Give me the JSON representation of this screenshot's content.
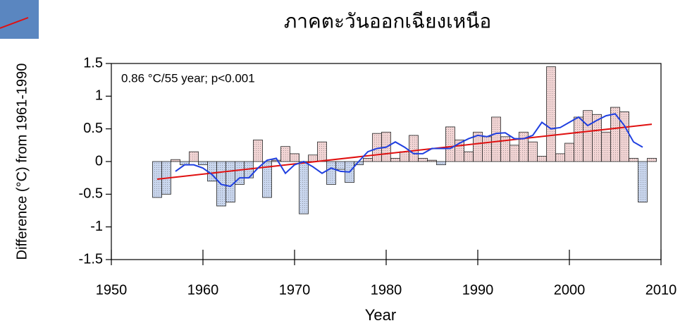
{
  "chart_data": {
    "type": "bar",
    "title": "ภาคตะวันออกเฉียงเหนือ",
    "annotation": "0.86 °C/55 year; p<0.001",
    "x_label": "Year",
    "y_label": "Difference (°C) from 1961-1990",
    "x": [
      1955,
      1956,
      1957,
      1958,
      1959,
      1960,
      1961,
      1962,
      1963,
      1964,
      1965,
      1966,
      1967,
      1968,
      1969,
      1970,
      1971,
      1972,
      1973,
      1974,
      1975,
      1976,
      1977,
      1978,
      1979,
      1980,
      1981,
      1982,
      1983,
      1984,
      1985,
      1986,
      1987,
      1988,
      1989,
      1990,
      1991,
      1992,
      1993,
      1994,
      1995,
      1996,
      1997,
      1998,
      1999,
      2000,
      2001,
      2002,
      2003,
      2004,
      2005,
      2006,
      2007,
      2008,
      2009
    ],
    "values": [
      -0.55,
      -0.5,
      0.03,
      -0.05,
      0.15,
      -0.05,
      -0.3,
      -0.68,
      -0.62,
      -0.35,
      -0.25,
      0.33,
      -0.55,
      0.02,
      0.23,
      0.12,
      -0.8,
      0.1,
      0.3,
      -0.35,
      -0.12,
      -0.32,
      -0.05,
      0.05,
      0.43,
      0.45,
      0.05,
      0.15,
      0.4,
      0.05,
      0.02,
      -0.05,
      0.53,
      0.33,
      0.15,
      0.45,
      0.38,
      0.68,
      0.38,
      0.25,
      0.45,
      0.3,
      0.08,
      1.45,
      0.12,
      0.28,
      0.68,
      0.78,
      0.72,
      0.45,
      0.83,
      0.76,
      0.05,
      -0.62,
      0.05
    ],
    "positive_color": "#f2d4d4",
    "negative_color": "#c9d6ee",
    "moving_average": {
      "color": "#1f3fe0",
      "x": [
        1957,
        1958,
        1959,
        1960,
        1961,
        1962,
        1963,
        1964,
        1965,
        1966,
        1967,
        1968,
        1969,
        1970,
        1971,
        1972,
        1973,
        1974,
        1975,
        1976,
        1977,
        1978,
        1979,
        1980,
        1981,
        1982,
        1983,
        1984,
        1985,
        1986,
        1987,
        1988,
        1989,
        1990,
        1991,
        1992,
        1993,
        1994,
        1995,
        1996,
        1997,
        1998,
        1999,
        2000,
        2001,
        2002,
        2003,
        2004,
        2005,
        2006,
        2007,
        2008
      ],
      "values": [
        -0.15,
        -0.05,
        -0.05,
        -0.1,
        -0.2,
        -0.35,
        -0.38,
        -0.25,
        -0.25,
        -0.1,
        0.02,
        0.05,
        -0.18,
        -0.05,
        0.0,
        -0.08,
        -0.18,
        -0.1,
        -0.15,
        -0.16,
        0.0,
        0.15,
        0.2,
        0.22,
        0.3,
        0.22,
        0.12,
        0.12,
        0.2,
        0.2,
        0.2,
        0.28,
        0.35,
        0.4,
        0.38,
        0.43,
        0.44,
        0.35,
        0.35,
        0.4,
        0.6,
        0.5,
        0.52,
        0.6,
        0.68,
        0.55,
        0.63,
        0.7,
        0.73,
        0.55,
        0.3,
        0.22
      ]
    },
    "trend": {
      "color": "#e01010",
      "x": [
        1955,
        2009
      ],
      "values": [
        -0.27,
        0.57
      ]
    },
    "xlim": [
      1950,
      2010
    ],
    "xticks": [
      1950,
      1960,
      1970,
      1980,
      1990,
      2000,
      2010
    ],
    "ylim": [
      -1.5,
      1.5
    ],
    "yticks": [
      -1.5,
      -1,
      -0.5,
      0,
      0.5,
      1,
      1.5
    ]
  }
}
